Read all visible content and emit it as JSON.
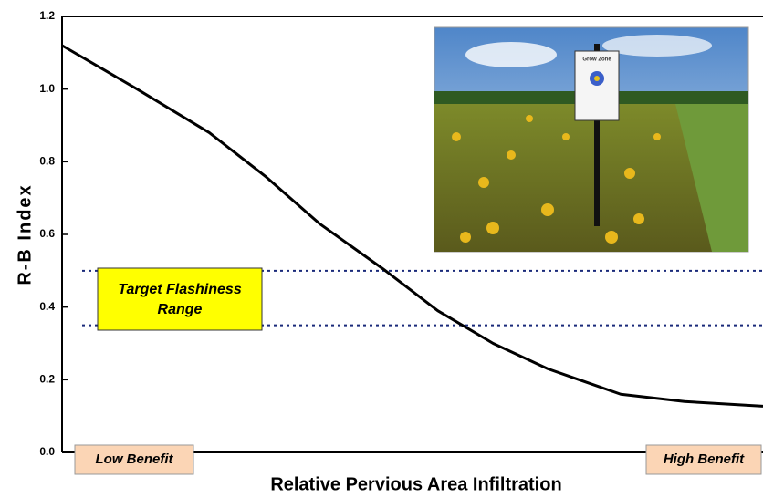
{
  "chart_data": {
    "type": "line",
    "y_label": "R-B Index",
    "x_label": "Relative Pervious Area Infiltration",
    "x": [
      0,
      0.107,
      0.21,
      0.29,
      0.367,
      0.458,
      0.536,
      0.615,
      0.693,
      0.797,
      0.888,
      1
    ],
    "values": [
      1.12,
      1.0,
      0.88,
      0.76,
      0.63,
      0.505,
      0.39,
      0.3,
      0.23,
      0.16,
      0.14,
      0.127
    ],
    "color": "#000000",
    "xlim": [
      0,
      1
    ],
    "ylim": [
      0,
      1.2
    ],
    "yticks": [
      {
        "value": 0,
        "label": "0.0"
      },
      0.2,
      0.4,
      0.6,
      0.8,
      {
        "value": 1,
        "label": "1.0"
      },
      1.2
    ],
    "reference_lines": [
      0.5,
      0.35
    ],
    "reference_color": "#1a2a7a",
    "annotations": [
      "Target Flashiness Range",
      "Low Benefit",
      "High Benefit"
    ],
    "inset_image_text": "Grow Zone"
  }
}
